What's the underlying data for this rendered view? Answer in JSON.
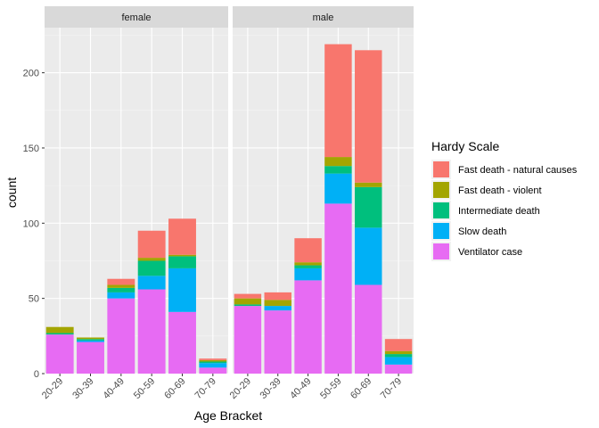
{
  "chart_data": {
    "type": "bar",
    "stacked": true,
    "facets": [
      "female",
      "male"
    ],
    "categories": [
      "20-29",
      "30-39",
      "40-49",
      "50-59",
      "60-69",
      "70-79"
    ],
    "xlabel": "Age Bracket",
    "ylabel": "count",
    "ylim": [
      0,
      230
    ],
    "yticks": [
      0,
      50,
      100,
      150,
      200
    ],
    "grid": true,
    "legend": {
      "title": "Hardy Scale",
      "position": "right",
      "entries": [
        "Fast death - natural causes",
        "Fast death - violent",
        "Intermediate death",
        "Slow death",
        "Ventilator case"
      ]
    },
    "colors": {
      "Fast death - natural causes": "#F8766D",
      "Fast death - violent": "#A3A500",
      "Intermediate death": "#00BF7D",
      "Slow death": "#00B0F6",
      "Ventilator case": "#E76BF3"
    },
    "stack_order": [
      "Ventilator case",
      "Slow death",
      "Intermediate death",
      "Fast death - violent",
      "Fast death - natural causes"
    ],
    "series": {
      "female": {
        "Ventilator case": [
          26,
          21,
          50,
          56,
          41,
          4
        ],
        "Slow death": [
          0,
          1,
          4,
          9,
          29,
          3
        ],
        "Intermediate death": [
          1,
          1,
          3,
          10,
          8,
          1
        ],
        "Fast death - violent": [
          4,
          1,
          2,
          2,
          1,
          1
        ],
        "Fast death - natural causes": [
          0,
          0,
          4,
          18,
          24,
          1
        ]
      },
      "male": {
        "Ventilator case": [
          45,
          42,
          62,
          113,
          59,
          6
        ],
        "Slow death": [
          0,
          3,
          8,
          20,
          38,
          5
        ],
        "Intermediate death": [
          1,
          0,
          2,
          5,
          27,
          2
        ],
        "Fast death - violent": [
          4,
          4,
          2,
          6,
          3,
          2
        ],
        "Fast death - natural causes": [
          3,
          5,
          16,
          75,
          88,
          8
        ]
      }
    }
  }
}
